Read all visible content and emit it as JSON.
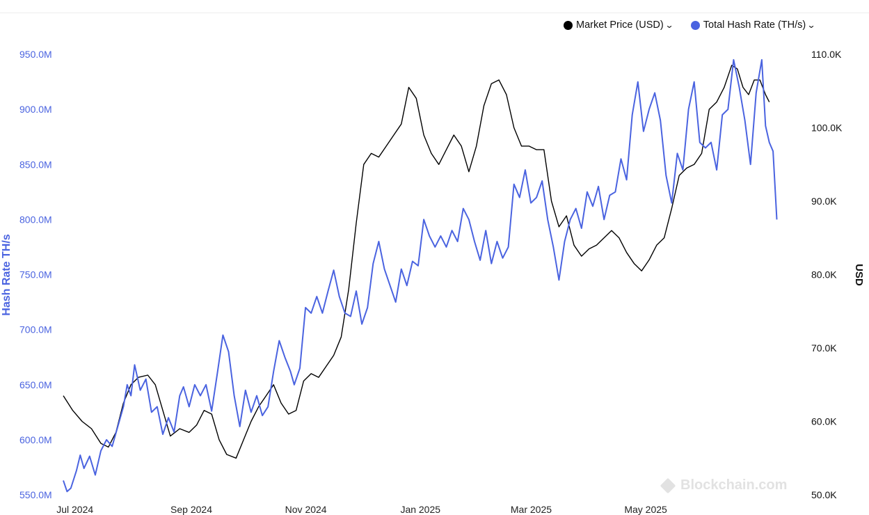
{
  "legend": {
    "price_label": "Market Price (USD)",
    "hash_label": "Total Hash Rate (TH/s)",
    "chevron": "⌄"
  },
  "watermark": "Blockchain.com",
  "chart_data": {
    "type": "line",
    "y_left": {
      "label": "Hash Rate TH/s",
      "range": [
        550000000,
        950000000
      ],
      "ticks": [
        "550.0M",
        "600.0M",
        "650.0M",
        "700.0M",
        "750.0M",
        "800.0M",
        "850.0M",
        "900.0M",
        "950.0M"
      ],
      "color": "#4a63e0"
    },
    "y_right": {
      "label": "USD",
      "range": [
        50000,
        110000
      ],
      "ticks": [
        "50.0K",
        "60.0K",
        "70.0K",
        "80.0K",
        "90.0K",
        "100.0K",
        "110.0K"
      ],
      "color": "#111111"
    },
    "x_range": [
      "2024-06-30",
      "2025-06-30"
    ],
    "x_ticks": [
      {
        "date": "2024-07-01",
        "label": "Jul 2024"
      },
      {
        "date": "2024-09-01",
        "label": "Sep 2024"
      },
      {
        "date": "2024-11-01",
        "label": "Nov 2024"
      },
      {
        "date": "2025-01-01",
        "label": "Jan 2025"
      },
      {
        "date": "2025-03-01",
        "label": "Mar 2025"
      },
      {
        "date": "2025-05-01",
        "label": "May 2025"
      }
    ],
    "grid": false,
    "legend_position": "top-right",
    "series": [
      {
        "name": "Market Price (USD)",
        "axis": "right",
        "color": "#000000",
        "points": [
          [
            "2024-06-30",
            63500
          ],
          [
            "2024-07-05",
            61500
          ],
          [
            "2024-07-10",
            60000
          ],
          [
            "2024-07-15",
            59000
          ],
          [
            "2024-07-20",
            57000
          ],
          [
            "2024-07-24",
            56500
          ],
          [
            "2024-07-28",
            58500
          ],
          [
            "2024-08-01",
            62500
          ],
          [
            "2024-08-05",
            65000
          ],
          [
            "2024-08-09",
            66000
          ],
          [
            "2024-08-14",
            66300
          ],
          [
            "2024-08-18",
            65000
          ],
          [
            "2024-08-22",
            61500
          ],
          [
            "2024-08-26",
            58000
          ],
          [
            "2024-08-31",
            59000
          ],
          [
            "2024-09-05",
            58500
          ],
          [
            "2024-09-09",
            59500
          ],
          [
            "2024-09-13",
            61500
          ],
          [
            "2024-09-17",
            61000
          ],
          [
            "2024-09-21",
            57500
          ],
          [
            "2024-09-25",
            55500
          ],
          [
            "2024-09-30",
            55000
          ],
          [
            "2024-10-04",
            57500
          ],
          [
            "2024-10-08",
            60000
          ],
          [
            "2024-10-12",
            62000
          ],
          [
            "2024-10-16",
            63500
          ],
          [
            "2024-10-20",
            65000
          ],
          [
            "2024-10-24",
            62500
          ],
          [
            "2024-10-28",
            61000
          ],
          [
            "2024-11-01",
            61500
          ],
          [
            "2024-11-05",
            65500
          ],
          [
            "2024-11-09",
            66500
          ],
          [
            "2024-11-13",
            66000
          ],
          [
            "2024-11-17",
            67500
          ],
          [
            "2024-11-21",
            69000
          ],
          [
            "2024-11-25",
            71500
          ],
          [
            "2024-11-29",
            78000
          ],
          [
            "2024-12-03",
            87000
          ],
          [
            "2024-12-07",
            95000
          ],
          [
            "2024-12-11",
            96500
          ],
          [
            "2024-12-15",
            96000
          ],
          [
            "2024-12-19",
            97500
          ],
          [
            "2024-12-23",
            99000
          ],
          [
            "2024-12-27",
            100500
          ],
          [
            "2024-12-31",
            105500
          ],
          [
            "2025-01-04",
            104000
          ],
          [
            "2025-01-08",
            99000
          ],
          [
            "2025-01-12",
            96500
          ],
          [
            "2025-01-16",
            95000
          ],
          [
            "2025-01-20",
            97000
          ],
          [
            "2025-01-24",
            99000
          ],
          [
            "2025-01-28",
            97500
          ],
          [
            "2025-02-01",
            94000
          ],
          [
            "2025-02-05",
            97500
          ],
          [
            "2025-02-09",
            103000
          ],
          [
            "2025-02-13",
            106000
          ],
          [
            "2025-02-17",
            106500
          ],
          [
            "2025-02-21",
            104500
          ],
          [
            "2025-02-25",
            100000
          ],
          [
            "2025-03-01",
            97500
          ],
          [
            "2025-03-05",
            97500
          ],
          [
            "2025-03-09",
            97000
          ],
          [
            "2025-03-13",
            97000
          ],
          [
            "2025-03-17",
            90000
          ],
          [
            "2025-03-21",
            86500
          ],
          [
            "2025-03-25",
            88000
          ],
          [
            "2025-03-29",
            84000
          ],
          [
            "2025-04-02",
            82500
          ],
          [
            "2025-04-06",
            83500
          ],
          [
            "2025-04-10",
            84000
          ],
          [
            "2025-04-14",
            85000
          ],
          [
            "2025-04-18",
            86000
          ],
          [
            "2025-04-22",
            85000
          ],
          [
            "2025-04-26",
            83000
          ],
          [
            "2025-04-30",
            81500
          ],
          [
            "2025-05-04",
            80500
          ],
          [
            "2025-05-08",
            82000
          ],
          [
            "2025-05-12",
            84000
          ],
          [
            "2025-05-16",
            85000
          ],
          [
            "2025-05-20",
            89000
          ],
          [
            "2025-05-24",
            93500
          ],
          [
            "2025-05-28",
            94500
          ],
          [
            "2025-06-01",
            95000
          ],
          [
            "2025-06-05",
            96500
          ],
          [
            "2025-06-09",
            102500
          ],
          [
            "2025-06-13",
            103500
          ],
          [
            "2025-06-17",
            105500
          ],
          [
            "2025-06-21",
            108500
          ],
          [
            "2025-06-24",
            108000
          ],
          [
            "2025-06-27",
            105500
          ],
          [
            "2025-06-30",
            104500
          ],
          [
            "2025-07-03",
            106500
          ],
          [
            "2025-07-06",
            106500
          ],
          [
            "2025-07-09",
            104500
          ],
          [
            "2025-07-11",
            103500
          ]
        ]
      },
      {
        "name": "Total Hash Rate (TH/s)",
        "axis": "left",
        "color": "#4a63e0",
        "points": [
          [
            "2024-06-30",
            563000000
          ],
          [
            "2024-07-02",
            553000000
          ],
          [
            "2024-07-04",
            556000000
          ],
          [
            "2024-07-07",
            572000000
          ],
          [
            "2024-07-09",
            586000000
          ],
          [
            "2024-07-11",
            574000000
          ],
          [
            "2024-07-14",
            585000000
          ],
          [
            "2024-07-17",
            568000000
          ],
          [
            "2024-07-20",
            590000000
          ],
          [
            "2024-07-23",
            600000000
          ],
          [
            "2024-07-26",
            594000000
          ],
          [
            "2024-07-29",
            612000000
          ],
          [
            "2024-08-01",
            630000000
          ],
          [
            "2024-08-03",
            650000000
          ],
          [
            "2024-08-05",
            640000000
          ],
          [
            "2024-08-07",
            668000000
          ],
          [
            "2024-08-10",
            645000000
          ],
          [
            "2024-08-13",
            655000000
          ],
          [
            "2024-08-16",
            625000000
          ],
          [
            "2024-08-19",
            630000000
          ],
          [
            "2024-08-22",
            605000000
          ],
          [
            "2024-08-25",
            620000000
          ],
          [
            "2024-08-28",
            607000000
          ],
          [
            "2024-08-31",
            640000000
          ],
          [
            "2024-09-02",
            648000000
          ],
          [
            "2024-09-05",
            630000000
          ],
          [
            "2024-09-08",
            650000000
          ],
          [
            "2024-09-11",
            640000000
          ],
          [
            "2024-09-14",
            650000000
          ],
          [
            "2024-09-17",
            626000000
          ],
          [
            "2024-09-20",
            660000000
          ],
          [
            "2024-09-23",
            695000000
          ],
          [
            "2024-09-26",
            680000000
          ],
          [
            "2024-09-29",
            640000000
          ],
          [
            "2024-10-02",
            612000000
          ],
          [
            "2024-10-05",
            645000000
          ],
          [
            "2024-10-08",
            625000000
          ],
          [
            "2024-10-11",
            640000000
          ],
          [
            "2024-10-14",
            622000000
          ],
          [
            "2024-10-17",
            630000000
          ],
          [
            "2024-10-20",
            662000000
          ],
          [
            "2024-10-23",
            690000000
          ],
          [
            "2024-10-26",
            675000000
          ],
          [
            "2024-10-29",
            662000000
          ],
          [
            "2024-10-31",
            650000000
          ],
          [
            "2024-11-03",
            665000000
          ],
          [
            "2024-11-06",
            720000000
          ],
          [
            "2024-11-09",
            715000000
          ],
          [
            "2024-11-12",
            730000000
          ],
          [
            "2024-11-15",
            715000000
          ],
          [
            "2024-11-18",
            735000000
          ],
          [
            "2024-11-21",
            754000000
          ],
          [
            "2024-11-24",
            730000000
          ],
          [
            "2024-11-27",
            715000000
          ],
          [
            "2024-11-30",
            712000000
          ],
          [
            "2024-12-03",
            735000000
          ],
          [
            "2024-12-06",
            705000000
          ],
          [
            "2024-12-09",
            720000000
          ],
          [
            "2024-12-12",
            760000000
          ],
          [
            "2024-12-15",
            780000000
          ],
          [
            "2024-12-18",
            755000000
          ],
          [
            "2024-12-21",
            740000000
          ],
          [
            "2024-12-24",
            725000000
          ],
          [
            "2024-12-27",
            755000000
          ],
          [
            "2024-12-30",
            740000000
          ],
          [
            "2025-01-02",
            762000000
          ],
          [
            "2025-01-05",
            758000000
          ],
          [
            "2025-01-08",
            800000000
          ],
          [
            "2025-01-11",
            785000000
          ],
          [
            "2025-01-14",
            775000000
          ],
          [
            "2025-01-17",
            785000000
          ],
          [
            "2025-01-20",
            775000000
          ],
          [
            "2025-01-23",
            790000000
          ],
          [
            "2025-01-26",
            780000000
          ],
          [
            "2025-01-29",
            810000000
          ],
          [
            "2025-02-01",
            800000000
          ],
          [
            "2025-02-04",
            780000000
          ],
          [
            "2025-02-07",
            763000000
          ],
          [
            "2025-02-10",
            790000000
          ],
          [
            "2025-02-13",
            760000000
          ],
          [
            "2025-02-16",
            780000000
          ],
          [
            "2025-02-19",
            765000000
          ],
          [
            "2025-02-22",
            775000000
          ],
          [
            "2025-02-25",
            832000000
          ],
          [
            "2025-02-28",
            820000000
          ],
          [
            "2025-03-03",
            845000000
          ],
          [
            "2025-03-06",
            815000000
          ],
          [
            "2025-03-09",
            820000000
          ],
          [
            "2025-03-12",
            835000000
          ],
          [
            "2025-03-15",
            800000000
          ],
          [
            "2025-03-18",
            775000000
          ],
          [
            "2025-03-21",
            745000000
          ],
          [
            "2025-03-24",
            780000000
          ],
          [
            "2025-03-27",
            800000000
          ],
          [
            "2025-03-30",
            810000000
          ],
          [
            "2025-04-02",
            792000000
          ],
          [
            "2025-04-05",
            825000000
          ],
          [
            "2025-04-08",
            812000000
          ],
          [
            "2025-04-11",
            830000000
          ],
          [
            "2025-04-14",
            800000000
          ],
          [
            "2025-04-17",
            822000000
          ],
          [
            "2025-04-20",
            825000000
          ],
          [
            "2025-04-23",
            855000000
          ],
          [
            "2025-04-26",
            836000000
          ],
          [
            "2025-04-29",
            895000000
          ],
          [
            "2025-05-02",
            925000000
          ],
          [
            "2025-05-05",
            880000000
          ],
          [
            "2025-05-08",
            900000000
          ],
          [
            "2025-05-11",
            915000000
          ],
          [
            "2025-05-14",
            890000000
          ],
          [
            "2025-05-17",
            840000000
          ],
          [
            "2025-05-20",
            815000000
          ],
          [
            "2025-05-23",
            860000000
          ],
          [
            "2025-05-26",
            845000000
          ],
          [
            "2025-05-29",
            900000000
          ],
          [
            "2025-06-01",
            925000000
          ],
          [
            "2025-06-04",
            870000000
          ],
          [
            "2025-06-07",
            865000000
          ],
          [
            "2025-06-10",
            870000000
          ],
          [
            "2025-06-13",
            845000000
          ],
          [
            "2025-06-16",
            895000000
          ],
          [
            "2025-06-19",
            900000000
          ],
          [
            "2025-06-22",
            945000000
          ],
          [
            "2025-06-25",
            920000000
          ],
          [
            "2025-06-28",
            890000000
          ],
          [
            "2025-07-01",
            850000000
          ],
          [
            "2025-07-04",
            915000000
          ],
          [
            "2025-07-07",
            945000000
          ],
          [
            "2025-07-09",
            885000000
          ],
          [
            "2025-07-11",
            870000000
          ],
          [
            "2025-07-13",
            862000000
          ],
          [
            "2025-07-15",
            800000000
          ]
        ]
      }
    ]
  }
}
